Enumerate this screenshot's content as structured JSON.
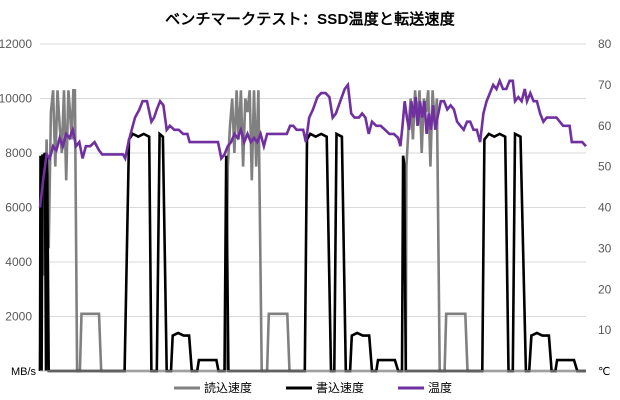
{
  "chart_data": {
    "type": "line",
    "title": "ベンチマークテスト：SSD温度と転送速度",
    "xlabel": "",
    "ylabel": "",
    "y_left": {
      "unit": "MB/s",
      "ylim": [
        0,
        12000
      ],
      "ticks": [
        "0",
        "2000",
        "4000",
        "6000",
        "8000",
        "10000",
        "12000"
      ]
    },
    "y_right": {
      "unit": "℃",
      "ylim": [
        0,
        80
      ],
      "ticks": [
        "0",
        "10",
        "20",
        "30",
        "40",
        "50",
        "60",
        "70",
        "80"
      ]
    },
    "x": {
      "range": [
        0,
        100
      ],
      "tick_labels": []
    },
    "grid": {
      "horizontal": true
    },
    "legend": {
      "placement": "bottom"
    },
    "series": [
      {
        "name": "読込速度",
        "axis": "left",
        "color": "#808080",
        "points": [
          [
            0,
            0
          ],
          [
            0.4,
            7500
          ],
          [
            0.8,
            3500
          ],
          [
            1.2,
            8500
          ],
          [
            1.6,
            4500
          ],
          [
            2,
            9500
          ],
          [
            2.4,
            10300
          ],
          [
            2.8,
            7500
          ],
          [
            3.2,
            10300
          ],
          [
            3.6,
            9000
          ],
          [
            4,
            8000
          ],
          [
            4.4,
            10300
          ],
          [
            4.8,
            7000
          ],
          [
            5.2,
            10300
          ],
          [
            5.5,
            9500
          ],
          [
            5.8,
            8500
          ],
          [
            6.1,
            10300
          ],
          [
            6.4,
            10300
          ],
          [
            6.8,
            0
          ],
          [
            7.3,
            0
          ],
          [
            7.6,
            2100
          ],
          [
            10.8,
            2100
          ],
          [
            11.2,
            0
          ],
          [
            15.5,
            0
          ],
          [
            34,
            0
          ],
          [
            34.4,
            7500
          ],
          [
            34.8,
            9000
          ],
          [
            35.2,
            10000
          ],
          [
            35.6,
            8000
          ],
          [
            36,
            10300
          ],
          [
            36.4,
            8500
          ],
          [
            36.8,
            10300
          ],
          [
            37.2,
            7500
          ],
          [
            37.6,
            10000
          ],
          [
            38,
            9500
          ],
          [
            38.4,
            10300
          ],
          [
            38.8,
            7000
          ],
          [
            39.2,
            10300
          ],
          [
            39.6,
            7500
          ],
          [
            40,
            10300
          ],
          [
            40.6,
            0
          ],
          [
            41.6,
            0
          ],
          [
            41.9,
            2100
          ],
          [
            45.3,
            2100
          ],
          [
            45.7,
            0
          ],
          [
            67,
            0
          ],
          [
            67.1,
            7500
          ],
          [
            67.5,
            9000
          ],
          [
            67.9,
            10000
          ],
          [
            68.3,
            8500
          ],
          [
            68.7,
            10300
          ],
          [
            69.1,
            9000
          ],
          [
            69.5,
            10300
          ],
          [
            69.9,
            8000
          ],
          [
            70.3,
            10000
          ],
          [
            70.7,
            9500
          ],
          [
            71.1,
            10300
          ],
          [
            71.5,
            7500
          ],
          [
            71.9,
            10300
          ],
          [
            72.3,
            9000
          ],
          [
            72.7,
            10000
          ],
          [
            73.2,
            0
          ],
          [
            74.1,
            0
          ],
          [
            74.4,
            2100
          ],
          [
            77.9,
            2100
          ],
          [
            78.3,
            0
          ],
          [
            100,
            0
          ]
        ]
      },
      {
        "name": "書込速度",
        "axis": "left",
        "color": "#000000",
        "points": [
          [
            0,
            0
          ],
          [
            0.1,
            7900
          ],
          [
            0.3,
            0
          ],
          [
            0.45,
            7900
          ],
          [
            0.7,
            7900
          ],
          [
            0.9,
            8000
          ],
          [
            1.1,
            0
          ],
          [
            1.3,
            7900
          ],
          [
            1.6,
            0
          ],
          [
            15.5,
            0
          ],
          [
            16.3,
            8500
          ],
          [
            17,
            8700
          ],
          [
            18,
            8600
          ],
          [
            19,
            8700
          ],
          [
            20,
            8600
          ],
          [
            20.4,
            0
          ],
          [
            21.4,
            0
          ],
          [
            21.9,
            8700
          ],
          [
            22.5,
            8600
          ],
          [
            23.2,
            0
          ],
          [
            24,
            0
          ],
          [
            24.3,
            1300
          ],
          [
            25.3,
            1400
          ],
          [
            26.3,
            1300
          ],
          [
            27.3,
            1300
          ],
          [
            27.8,
            0
          ],
          [
            28.8,
            0
          ],
          [
            29.1,
            400
          ],
          [
            32.3,
            400
          ],
          [
            32.7,
            0
          ],
          [
            33.8,
            0
          ],
          [
            34.1,
            7900
          ],
          [
            34.5,
            0
          ],
          [
            48.5,
            0
          ],
          [
            48.9,
            8500
          ],
          [
            49.5,
            8700
          ],
          [
            50.5,
            8600
          ],
          [
            51.5,
            8700
          ],
          [
            52.5,
            8600
          ],
          [
            53.3,
            0
          ],
          [
            53.9,
            0
          ],
          [
            54.3,
            8700
          ],
          [
            55.3,
            8600
          ],
          [
            56,
            0
          ],
          [
            56.8,
            0
          ],
          [
            57.1,
            1300
          ],
          [
            58.1,
            1400
          ],
          [
            59.1,
            1300
          ],
          [
            60.3,
            1300
          ],
          [
            60.8,
            0
          ],
          [
            61.6,
            0
          ],
          [
            61.9,
            400
          ],
          [
            65,
            400
          ],
          [
            65.6,
            0
          ],
          [
            66.3,
            0
          ],
          [
            66.5,
            7900
          ],
          [
            66.7,
            7600
          ],
          [
            67,
            0
          ],
          [
            81,
            0
          ],
          [
            81.4,
            8500
          ],
          [
            82.2,
            8700
          ],
          [
            83.2,
            8600
          ],
          [
            84.2,
            8700
          ],
          [
            85.2,
            8600
          ],
          [
            85.8,
            0
          ],
          [
            86.6,
            0
          ],
          [
            87,
            8700
          ],
          [
            88,
            8600
          ],
          [
            89,
            0
          ],
          [
            89.6,
            0
          ],
          [
            90,
            1300
          ],
          [
            91,
            1400
          ],
          [
            92,
            1300
          ],
          [
            93.2,
            1300
          ],
          [
            93.7,
            0
          ],
          [
            94.4,
            0
          ],
          [
            94.7,
            400
          ],
          [
            97.8,
            400
          ],
          [
            98.4,
            0
          ],
          [
            100,
            0
          ]
        ]
      },
      {
        "name": "温度",
        "axis": "right",
        "color": "#7030A0",
        "points": [
          [
            0,
            40
          ],
          [
            0.6,
            47
          ],
          [
            1.2,
            53
          ],
          [
            1.8,
            52
          ],
          [
            2.4,
            55
          ],
          [
            3,
            54
          ],
          [
            3.6,
            57
          ],
          [
            4.2,
            55
          ],
          [
            4.8,
            58
          ],
          [
            5.4,
            57
          ],
          [
            6,
            59
          ],
          [
            6.6,
            55
          ],
          [
            7.2,
            56
          ],
          [
            7.8,
            52
          ],
          [
            8.4,
            55
          ],
          [
            9.2,
            55
          ],
          [
            10,
            56
          ],
          [
            10.8,
            54
          ],
          [
            11.4,
            53
          ],
          [
            12.2,
            53
          ],
          [
            13,
            53
          ],
          [
            13.8,
            53
          ],
          [
            14.6,
            53
          ],
          [
            15.2,
            53
          ],
          [
            15.6,
            52
          ],
          [
            16.2,
            56
          ],
          [
            16.8,
            59
          ],
          [
            17.4,
            62
          ],
          [
            18.2,
            64
          ],
          [
            18.8,
            66
          ],
          [
            19.6,
            66
          ],
          [
            20.4,
            61
          ],
          [
            20.9,
            62
          ],
          [
            21.4,
            64
          ],
          [
            22,
            66
          ],
          [
            22.6,
            65
          ],
          [
            23.2,
            59
          ],
          [
            23.8,
            60
          ],
          [
            24.6,
            59
          ],
          [
            25.4,
            59
          ],
          [
            26.2,
            58
          ],
          [
            27,
            58
          ],
          [
            27.4,
            56
          ],
          [
            28,
            56
          ],
          [
            29,
            56
          ],
          [
            30,
            56
          ],
          [
            31,
            56
          ],
          [
            32,
            56
          ],
          [
            32.6,
            56
          ],
          [
            33.2,
            52
          ],
          [
            33.8,
            53
          ],
          [
            34.4,
            55
          ],
          [
            35,
            56
          ],
          [
            35.6,
            58
          ],
          [
            36.2,
            57
          ],
          [
            36.8,
            59
          ],
          [
            37.4,
            56
          ],
          [
            38,
            58
          ],
          [
            38.6,
            56
          ],
          [
            39.2,
            57
          ],
          [
            39.8,
            56
          ],
          [
            40.4,
            58
          ],
          [
            41,
            55
          ],
          [
            41.6,
            58
          ],
          [
            42.2,
            58
          ],
          [
            42.8,
            58
          ],
          [
            43.4,
            58
          ],
          [
            44,
            58
          ],
          [
            44.6,
            58
          ],
          [
            45.2,
            58
          ],
          [
            45.8,
            60
          ],
          [
            46.4,
            60
          ],
          [
            47,
            59
          ],
          [
            47.6,
            59
          ],
          [
            48.2,
            59
          ],
          [
            48.7,
            56
          ],
          [
            49.3,
            62
          ],
          [
            50,
            64
          ],
          [
            50.8,
            67
          ],
          [
            51.5,
            68
          ],
          [
            52.3,
            68
          ],
          [
            53,
            67
          ],
          [
            53.6,
            62
          ],
          [
            54.2,
            63
          ],
          [
            55,
            66
          ],
          [
            55.8,
            69
          ],
          [
            56.4,
            70
          ],
          [
            57,
            63
          ],
          [
            57.6,
            62
          ],
          [
            58.4,
            62
          ],
          [
            59,
            63
          ],
          [
            59.6,
            62
          ],
          [
            60.2,
            58
          ],
          [
            60.8,
            61
          ],
          [
            61.6,
            60
          ],
          [
            62.4,
            60
          ],
          [
            63.2,
            59
          ],
          [
            64,
            58
          ],
          [
            64.8,
            58
          ],
          [
            65.6,
            57
          ],
          [
            66,
            55
          ],
          [
            66.4,
            60
          ],
          [
            66.8,
            66
          ],
          [
            67.2,
            62
          ],
          [
            67.6,
            59
          ],
          [
            68,
            66
          ],
          [
            68.4,
            62
          ],
          [
            68.8,
            67
          ],
          [
            69.2,
            60
          ],
          [
            69.6,
            66
          ],
          [
            70,
            62
          ],
          [
            70.4,
            66
          ],
          [
            70.8,
            58
          ],
          [
            71.2,
            63
          ],
          [
            71.6,
            59
          ],
          [
            72,
            65
          ],
          [
            72.4,
            59
          ],
          [
            72.8,
            62
          ],
          [
            73.4,
            66
          ],
          [
            74,
            66
          ],
          [
            74.6,
            64
          ],
          [
            75.2,
            65
          ],
          [
            75.8,
            64
          ],
          [
            76.4,
            61
          ],
          [
            77,
            60
          ],
          [
            77.6,
            59
          ],
          [
            78.2,
            61
          ],
          [
            78.8,
            61
          ],
          [
            79.4,
            59
          ],
          [
            80,
            59
          ],
          [
            80.6,
            56
          ],
          [
            81.2,
            63
          ],
          [
            81.8,
            66
          ],
          [
            82.4,
            68
          ],
          [
            83,
            70
          ],
          [
            83.6,
            69
          ],
          [
            84.2,
            71
          ],
          [
            84.8,
            69
          ],
          [
            85.4,
            69
          ],
          [
            86,
            71
          ],
          [
            86.6,
            71
          ],
          [
            87,
            66
          ],
          [
            87.6,
            67
          ],
          [
            88.2,
            66
          ],
          [
            88.8,
            69
          ],
          [
            89.2,
            66
          ],
          [
            89.8,
            68
          ],
          [
            90.4,
            66
          ],
          [
            91,
            66
          ],
          [
            91.6,
            63
          ],
          [
            92.2,
            61
          ],
          [
            92.8,
            62
          ],
          [
            93.4,
            62
          ],
          [
            94,
            62
          ],
          [
            94.6,
            62
          ],
          [
            95.2,
            61
          ],
          [
            95.8,
            60
          ],
          [
            96.4,
            60
          ],
          [
            97,
            60
          ],
          [
            97.4,
            56
          ],
          [
            98,
            56
          ],
          [
            98.6,
            56
          ],
          [
            99.3,
            56
          ],
          [
            100,
            55
          ]
        ]
      }
    ]
  }
}
